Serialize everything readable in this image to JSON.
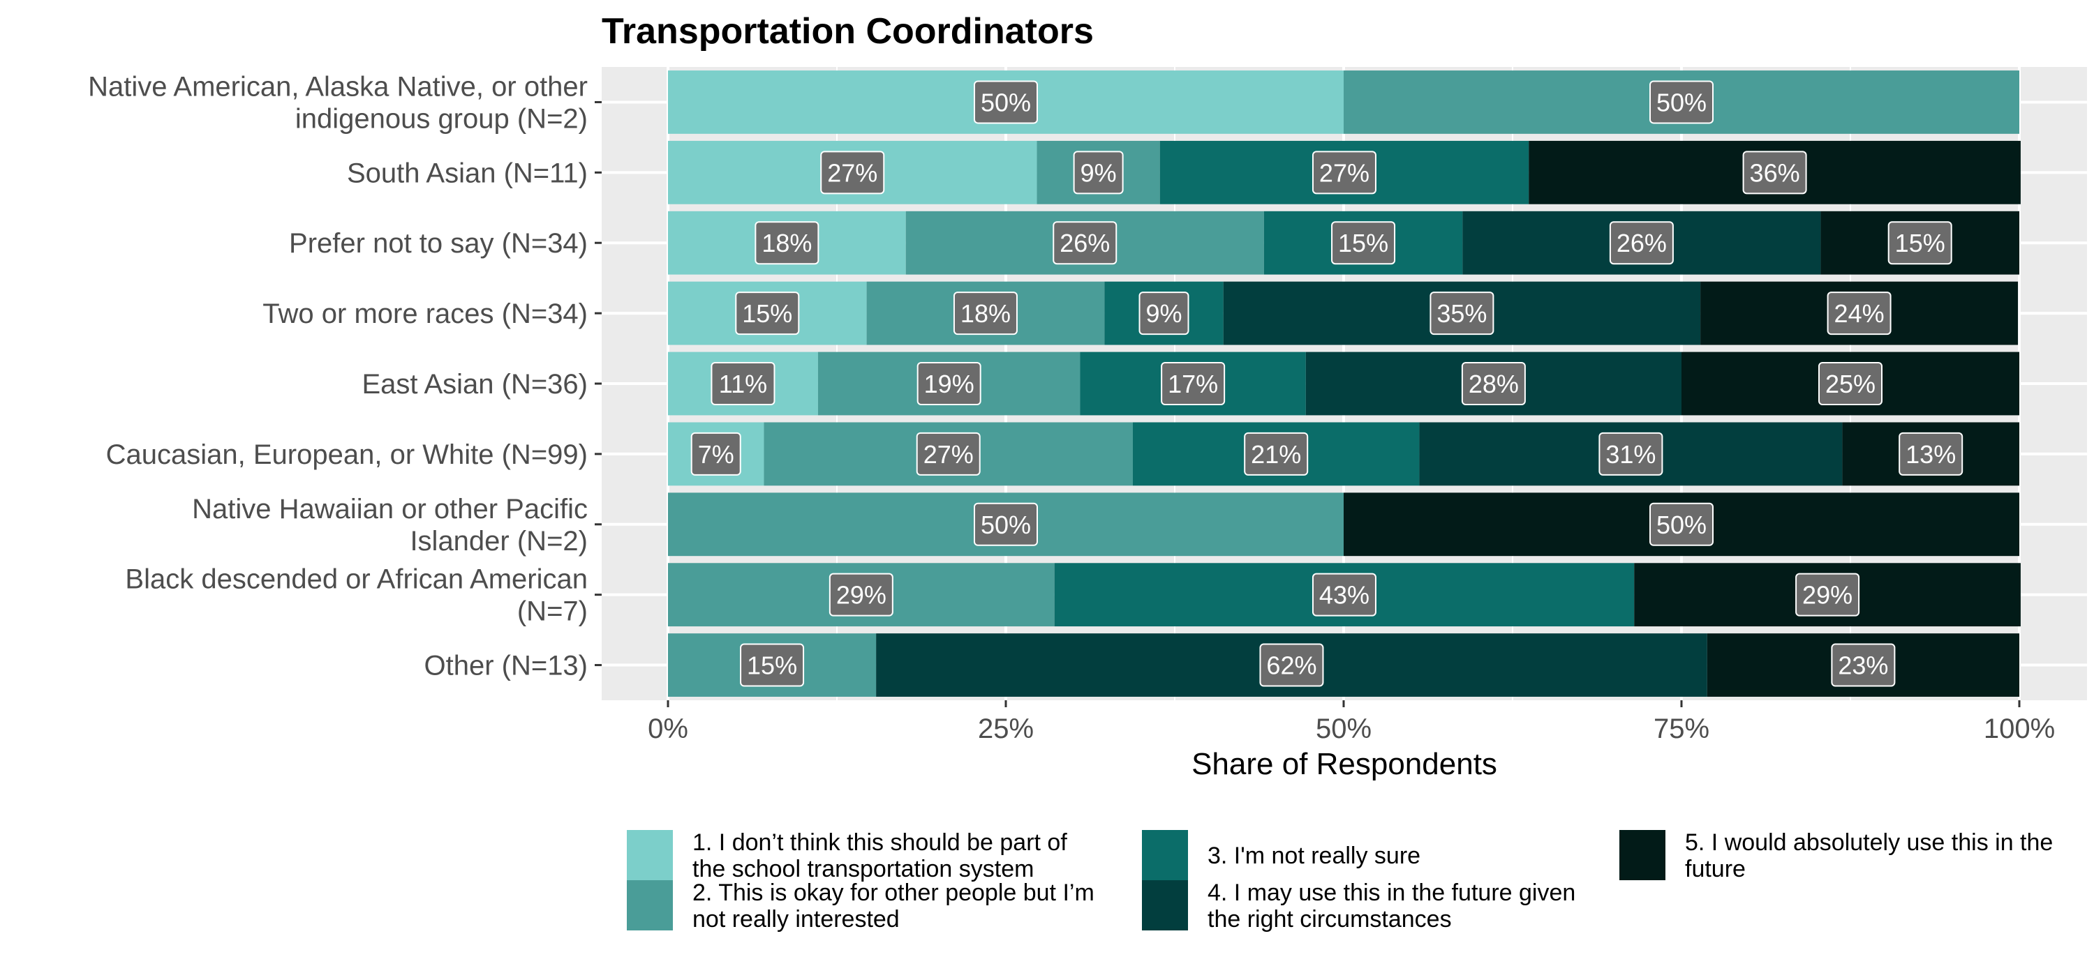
{
  "chart_data": {
    "type": "bar",
    "orientation": "horizontal",
    "stacked": true,
    "title": "Transportation Coordinators",
    "xlabel": "Share of Respondents",
    "ylabel": "",
    "xlim": [
      0,
      100
    ],
    "x_ticks": [
      "0%",
      "25%",
      "50%",
      "75%",
      "100%"
    ],
    "grid": true,
    "legend_position": "bottom",
    "categories": [
      [
        "Native American, Alaska Native, or other",
        "indigenous group (N=2)"
      ],
      [
        "South Asian (N=11)"
      ],
      [
        "Prefer not to say (N=34)"
      ],
      [
        "Two or more races (N=34)"
      ],
      [
        "East Asian (N=36)"
      ],
      [
        "Caucasian, European, or White (N=99)"
      ],
      [
        "Native Hawaiian or other Pacific",
        "Islander (N=2)"
      ],
      [
        "Black descended or African American",
        "(N=7)"
      ],
      [
        "Other (N=13)"
      ]
    ],
    "series": [
      {
        "name": [
          "1. I don’t think this should be part of",
          "the school transportation system"
        ],
        "color": "#7ccfca",
        "values": [
          50,
          27.3,
          17.6,
          14.7,
          11.1,
          7.1,
          0,
          0,
          0
        ],
        "labels": [
          "50%",
          "27%",
          "18%",
          "15%",
          "11%",
          "7%",
          "",
          "",
          ""
        ]
      },
      {
        "name": [
          "2. This is okay for other people but I’m",
          "not really interested"
        ],
        "color": "#4a9d98",
        "values": [
          50,
          9.1,
          26.5,
          17.6,
          19.4,
          27.3,
          50,
          28.6,
          15.4
        ],
        "labels": [
          "50%",
          "9%",
          "26%",
          "18%",
          "19%",
          "27%",
          "50%",
          "29%",
          "15%"
        ]
      },
      {
        "name": [
          "3. I'm not really sure"
        ],
        "color": "#0b6d69",
        "values": [
          0,
          27.3,
          14.7,
          8.8,
          16.7,
          21.2,
          0,
          42.9,
          0
        ],
        "labels": [
          "",
          "27%",
          "15%",
          "9%",
          "17%",
          "21%",
          "",
          "43%",
          ""
        ]
      },
      {
        "name": [
          "4. I may use this in the future given",
          "the right circumstances"
        ],
        "color": "#023e3e",
        "values": [
          0,
          0,
          26.5,
          35.3,
          27.8,
          31.3,
          0,
          0,
          61.5
        ],
        "labels": [
          "",
          "",
          "26%",
          "35%",
          "28%",
          "31%",
          "",
          "",
          "62%"
        ]
      },
      {
        "name": [
          "5. I would absolutely use this in the",
          "future"
        ],
        "color": "#021b18",
        "values": [
          0,
          36.4,
          14.7,
          23.5,
          25,
          13.1,
          50,
          28.6,
          23.1
        ],
        "labels": [
          "",
          "36%",
          "15%",
          "24%",
          "25%",
          "13%",
          "50%",
          "29%",
          "23%"
        ]
      }
    ],
    "colors": {
      "panel_background": "#ebebeb",
      "grid_line": "#ffffff",
      "label_box": "#6b6b6b"
    }
  }
}
